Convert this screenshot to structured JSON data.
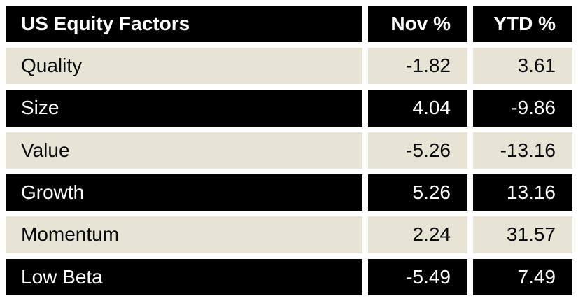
{
  "table": {
    "title": "US Equity Factors",
    "header": {
      "factor": "US Equity Factors",
      "nov": "Nov %",
      "ytd": "YTD %"
    },
    "rows": [
      {
        "factor": "Quality",
        "nov": "-1.82",
        "ytd": "3.61"
      },
      {
        "factor": "Size",
        "nov": "4.04",
        "ytd": "-9.86"
      },
      {
        "factor": "Value",
        "nov": "-5.26",
        "ytd": "-13.16"
      },
      {
        "factor": "Growth",
        "nov": "5.26",
        "ytd": "13.16"
      },
      {
        "factor": "Momentum",
        "nov": "2.24",
        "ytd": "31.57"
      },
      {
        "factor": "Low Beta",
        "nov": "-5.49",
        "ytd": "7.49"
      }
    ]
  },
  "colors": {
    "row_dark_bg": "#000000",
    "row_dark_text": "#ffffff",
    "row_light_bg": "#e8e4d5",
    "row_light_text": "#0a0a0a",
    "gutter": "#ffffff"
  },
  "chart_data": {
    "type": "table",
    "title": "US Equity Factors",
    "columns": [
      "US Equity Factors",
      "Nov %",
      "YTD %"
    ],
    "categories": [
      "Quality",
      "Size",
      "Value",
      "Growth",
      "Momentum",
      "Low Beta"
    ],
    "series": [
      {
        "name": "Nov %",
        "values": [
          -1.82,
          4.04,
          -5.26,
          5.26,
          2.24,
          -5.49
        ]
      },
      {
        "name": "YTD %",
        "values": [
          3.61,
          -9.86,
          -13.16,
          13.16,
          31.57,
          7.49
        ]
      }
    ],
    "layout_hints": {
      "row_banding": "alternating black and cream rows starting with cream",
      "numeric_alignment": "right",
      "header_style": "black background, white bold text"
    }
  }
}
